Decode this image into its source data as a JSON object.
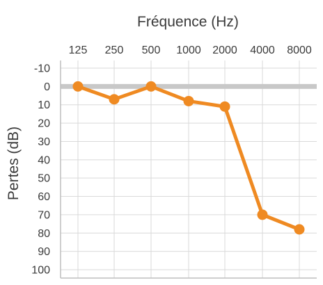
{
  "chart_data": {
    "type": "line",
    "title": "",
    "xlabel": "Fréquence (Hz)",
    "ylabel": "Pertes (dB)",
    "x_axis_position": "top",
    "y_inverted": true,
    "categories": [
      "125",
      "250",
      "500",
      "1000",
      "2000",
      "4000",
      "8000"
    ],
    "y_ticks": [
      "-10",
      "0",
      "10",
      "20",
      "30",
      "40",
      "50",
      "60",
      "70",
      "80",
      "90",
      "100"
    ],
    "ylim": [
      -10,
      100
    ],
    "reference_line": {
      "value": 0,
      "color": "#c8c8c8"
    },
    "grid": true,
    "series": [
      {
        "values": [
          0,
          7,
          0,
          8,
          11,
          70,
          78
        ],
        "color": "#ef8a22"
      }
    ],
    "colors": {
      "grid": "#d9d9d9",
      "frame": "#bdbdbd",
      "text": "#3a3a3a",
      "line": "#ef8a22"
    }
  }
}
